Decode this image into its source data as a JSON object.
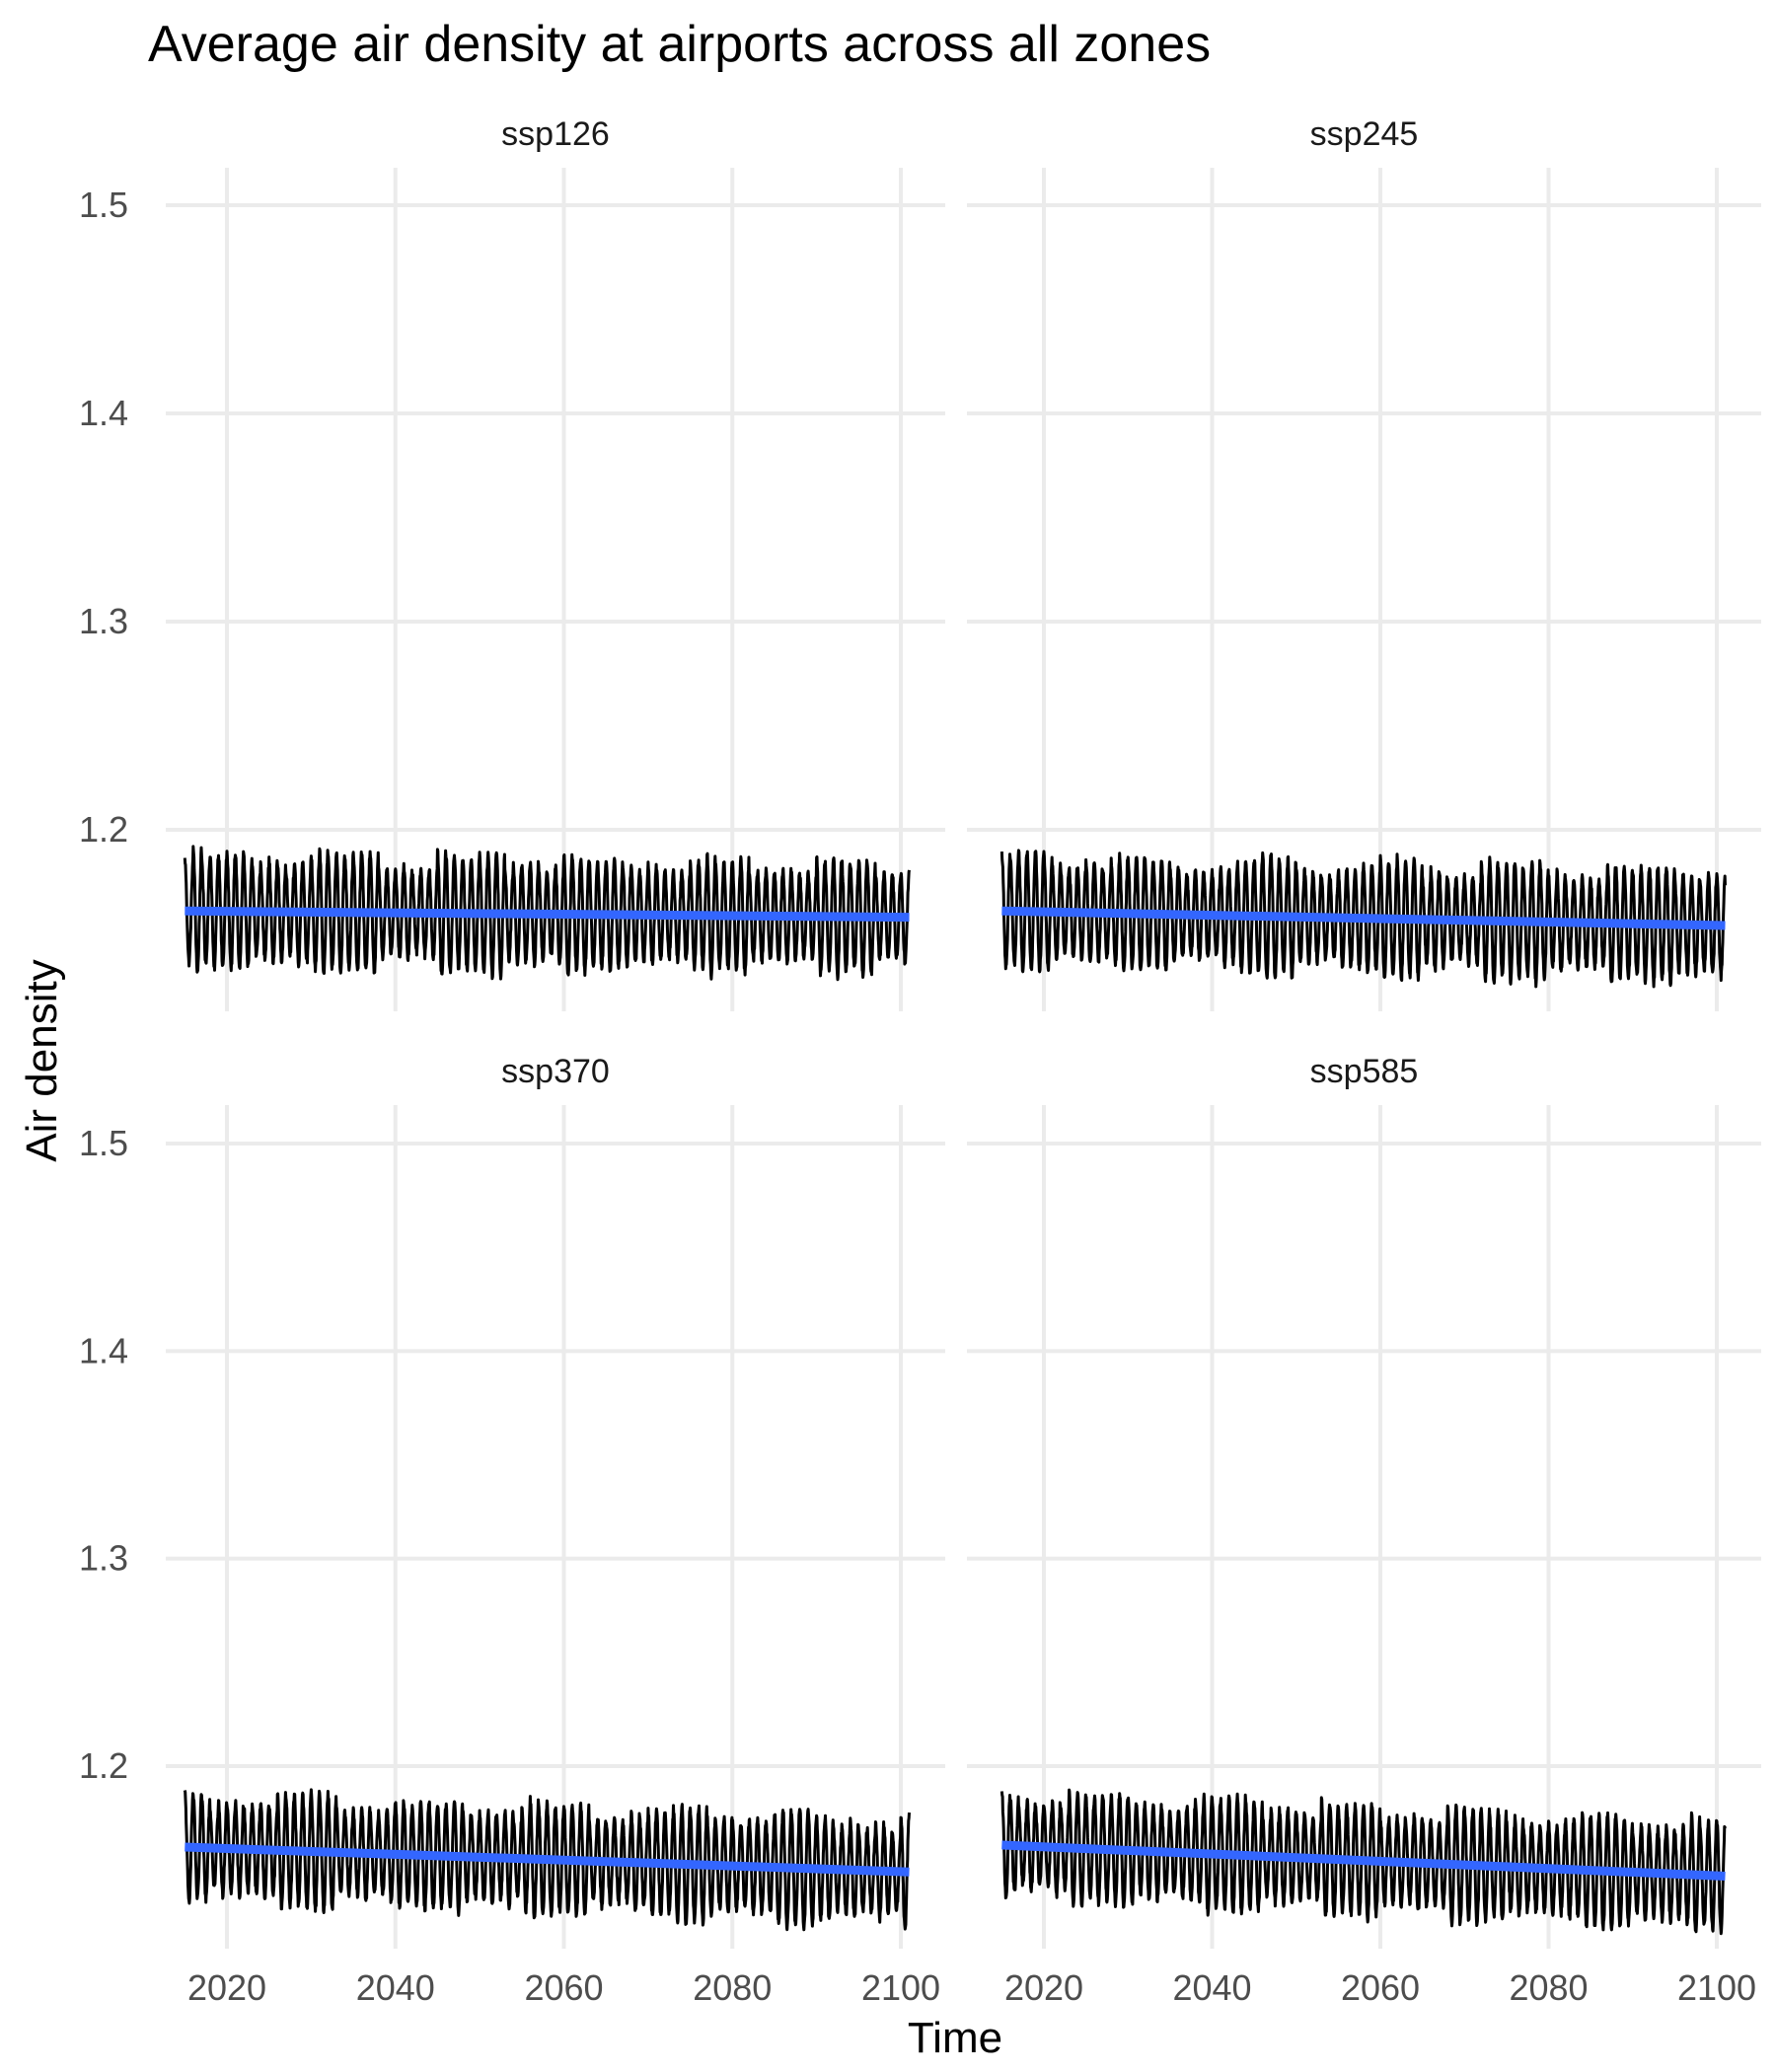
{
  "chart_data": {
    "type": "line",
    "title": "Average air density at airports across all zones",
    "xlabel": "Time",
    "ylabel": "Air density",
    "xlim": [
      2015,
      2101
    ],
    "ylim": [
      1.12,
      1.52
    ],
    "x_ticks": [
      2020,
      2040,
      2060,
      2080,
      2100
    ],
    "y_ticks": [
      1.2,
      1.3,
      1.4,
      1.5
    ],
    "grid": true,
    "legend": "none",
    "series_colors": {
      "raw": "#000000",
      "trend": "#3366ff"
    },
    "panels": [
      {
        "name": "ssp126",
        "raw_series": {
          "period_years": 1,
          "mean_start": 1.161,
          "mean_end": 1.158,
          "amplitude": 0.022
        },
        "trend": {
          "x": [
            2015,
            2101
          ],
          "y": [
            1.161,
            1.158
          ]
        }
      },
      {
        "name": "ssp245",
        "raw_series": {
          "period_years": 1,
          "mean_start": 1.161,
          "mean_end": 1.154,
          "amplitude": 0.022
        },
        "trend": {
          "x": [
            2015,
            2101
          ],
          "y": [
            1.161,
            1.154
          ]
        }
      },
      {
        "name": "ssp370",
        "raw_series": {
          "period_years": 1,
          "mean_start": 1.161,
          "mean_end": 1.149,
          "amplitude": 0.021
        },
        "trend": {
          "x": [
            2015,
            2101
          ],
          "y": [
            1.161,
            1.149
          ]
        }
      },
      {
        "name": "ssp585",
        "raw_series": {
          "period_years": 1,
          "mean_start": 1.162,
          "mean_end": 1.147,
          "amplitude": 0.021
        },
        "trend": {
          "x": [
            2015,
            2101
          ],
          "y": [
            1.162,
            1.147
          ]
        }
      }
    ]
  }
}
